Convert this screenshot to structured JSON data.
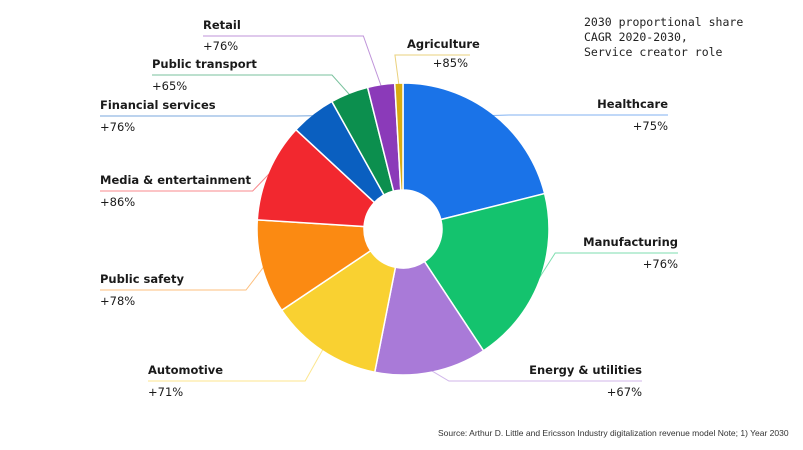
{
  "chart_data": {
    "type": "pie",
    "title": "",
    "note_lines": [
      "2030 proportional share",
      "CAGR 2020-2030,",
      "Service creator role"
    ],
    "source": "Source: Arthur D. Little and Ericsson Industry digitalization revenue model Note; 1) Year 2030",
    "slices": [
      {
        "label": "Healthcare",
        "cagr": "+75%",
        "share": 0.211,
        "color": "#1a73e8"
      },
      {
        "label": "Manufacturing",
        "cagr": "+76%",
        "share": 0.196,
        "color": "#14c36e"
      },
      {
        "label": "Energy & utilities",
        "cagr": "+67%",
        "share": 0.124,
        "color": "#a97ad8"
      },
      {
        "label": "Automotive",
        "cagr": "+71%",
        "share": 0.125,
        "color": "#f9d131"
      },
      {
        "label": "Public safety",
        "cagr": "+78%",
        "share": 0.104,
        "color": "#fb8a12"
      },
      {
        "label": "Media & entertainment",
        "cagr": "+86%",
        "share": 0.109,
        "color": "#f2282f"
      },
      {
        "label": "Financial services",
        "cagr": "+76%",
        "share": 0.05,
        "color": "#0a5fc0"
      },
      {
        "label": "Public transport",
        "cagr": "+65%",
        "share": 0.042,
        "color": "#0c8f4e"
      },
      {
        "label": "Retail",
        "cagr": "+76%",
        "share": 0.03,
        "color": "#8b3ab9"
      },
      {
        "label": "Agriculture",
        "cagr": "+85%",
        "share": 0.009,
        "color": "#d8ac12"
      }
    ]
  }
}
